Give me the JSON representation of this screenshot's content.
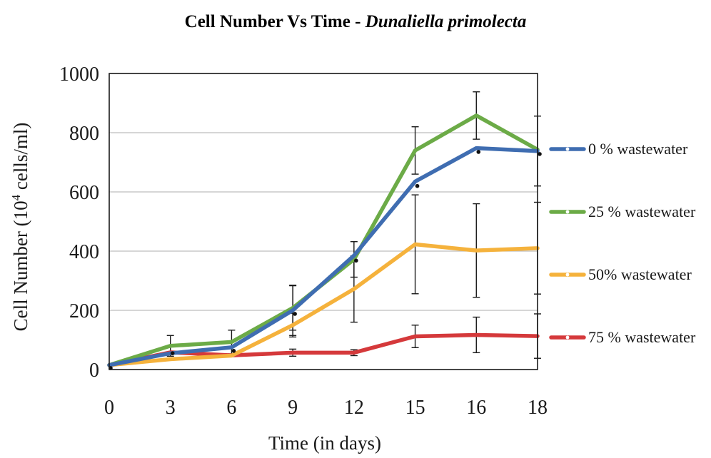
{
  "chart_data": {
    "type": "line",
    "title": {
      "prefix": "Cell Number Vs Time - ",
      "species": "Dunaliella primolecta"
    },
    "xlabel": "Time (in days)",
    "ylabel": {
      "main": "Cell Number (10",
      "exponent": "4",
      "unit": " cells/ml)"
    },
    "categories": [
      "0",
      "3",
      "6",
      "9",
      "12",
      "15",
      "16",
      "18"
    ],
    "ylim": [
      0,
      1000
    ],
    "yticks": [
      0,
      200,
      400,
      600,
      800,
      1000
    ],
    "grid": true,
    "legend_position": "right",
    "series": [
      {
        "name": "0 % wastewater",
        "color": "#3f6db1",
        "values": [
          15,
          55,
          75,
          200,
          385,
          635,
          748,
          738
        ],
        "error": [
          0,
          0,
          0,
          85,
          0,
          0,
          0,
          118
        ]
      },
      {
        "name": "25 % wastewater",
        "color": "#6cab47",
        "values": [
          15,
          80,
          93,
          208,
          372,
          740,
          858,
          743
        ],
        "error": [
          0,
          35,
          40,
          75,
          60,
          80,
          80,
          0
        ]
      },
      {
        "name": "50% wastewater",
        "color": "#f5b23c",
        "values": [
          15,
          35,
          47,
          150,
          272,
          423,
          402,
          410
        ],
        "error": [
          0,
          0,
          0,
          40,
          112,
          167,
          158,
          155
        ]
      },
      {
        "name": "75 % wastewater",
        "color": "#d5393b",
        "values": [
          15,
          58,
          48,
          57,
          57,
          112,
          117,
          113
        ],
        "error": [
          0,
          0,
          0,
          12,
          10,
          38,
          60,
          75
        ]
      }
    ],
    "markers": [
      {
        "x": 0,
        "y": 5
      },
      {
        "x": 1,
        "y": 55
      },
      {
        "x": 2,
        "y": 63
      },
      {
        "x": 3,
        "y": 188
      },
      {
        "x": 4,
        "y": 368
      },
      {
        "x": 5,
        "y": 620
      },
      {
        "x": 6,
        "y": 735
      },
      {
        "x": 7,
        "y": 728
      }
    ]
  }
}
